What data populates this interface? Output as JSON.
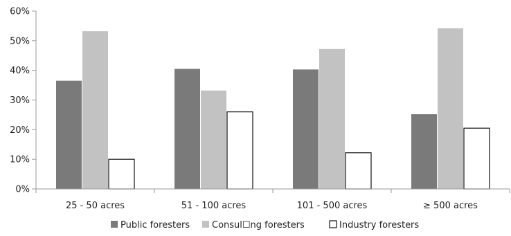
{
  "chart_data": {
    "type": "bar",
    "title": "",
    "xlabel": "",
    "ylabel": "",
    "categories": [
      "25 - 50 acres",
      "51 - 100 acres",
      "101 - 500 acres",
      "≥ 500 acres"
    ],
    "y_ticks": [
      "0%",
      "10%",
      "20%",
      "30%",
      "40%",
      "50%",
      "60%"
    ],
    "ylim": [
      0,
      60
    ],
    "grid": false,
    "legend_position": "bottom",
    "series": [
      {
        "name": "Public foresters",
        "values": [
          36.5,
          40.5,
          40.3,
          25.2
        ],
        "color": "#7a7a7a"
      },
      {
        "name": "Consul☐ng foresters",
        "values": [
          53.2,
          33.2,
          47.2,
          54.2
        ],
        "color": "#c2c2c2"
      },
      {
        "name": "Industry foresters",
        "values": [
          10.0,
          26.0,
          12.2,
          20.5
        ],
        "color": "#ffffff"
      }
    ]
  }
}
